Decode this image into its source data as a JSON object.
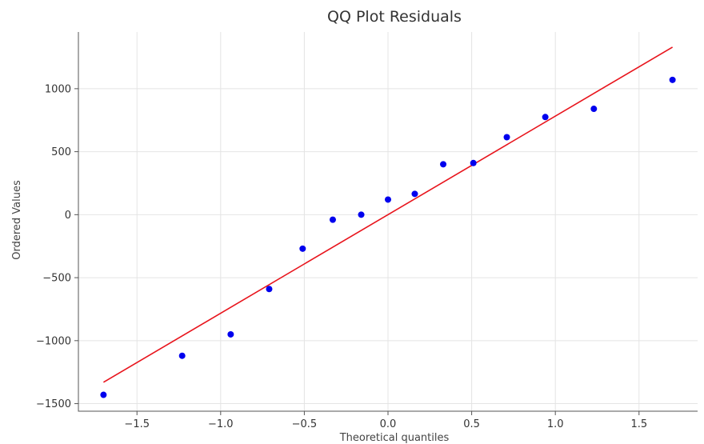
{
  "chart_data": {
    "type": "scatter",
    "title": "QQ Plot Residuals",
    "xlabel": "Theoretical quantiles",
    "ylabel": "Ordered Values",
    "xlim": [
      -1.85,
      1.85
    ],
    "ylim": [
      -1560,
      1450
    ],
    "xticks": [
      -1.5,
      -1.0,
      -0.5,
      0.0,
      0.5,
      1.0,
      1.5
    ],
    "xtick_labels": [
      "−1.5",
      "−1.0",
      "−0.5",
      "0.0",
      "0.5",
      "1.0",
      "1.5"
    ],
    "yticks": [
      -1500,
      -1000,
      -500,
      0,
      500,
      1000
    ],
    "ytick_labels": [
      "−1500",
      "−1000",
      "−500",
      "0",
      "500",
      "1000"
    ],
    "grid": true,
    "series": [
      {
        "kind": "points",
        "color": "#0000ee",
        "x": [
          -1.7,
          -1.23,
          -0.94,
          -0.71,
          -0.51,
          -0.33,
          -0.16,
          0.0,
          0.16,
          0.33,
          0.51,
          0.71,
          0.94,
          1.23,
          1.7
        ],
        "y": [
          -1430,
          -1120,
          -950,
          -590,
          -270,
          -40,
          0,
          120,
          165,
          400,
          410,
          615,
          775,
          840,
          1070
        ]
      },
      {
        "kind": "line",
        "color": "#e8141c",
        "x": [
          -1.7,
          1.7
        ],
        "y": [
          -1330,
          1330
        ]
      }
    ]
  }
}
